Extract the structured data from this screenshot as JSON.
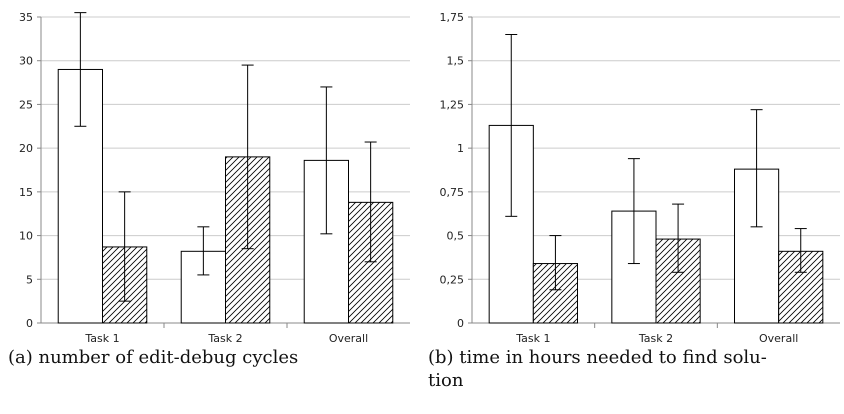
{
  "chart_data": [
    {
      "type": "bar",
      "categories": [
        "Task 1",
        "Task 2",
        "Overall"
      ],
      "series": [
        {
          "values": [
            29.0,
            8.2,
            18.6
          ],
          "error_low": [
            22.5,
            5.5,
            10.2
          ],
          "error_high": [
            35.5,
            11.0,
            27.0
          ],
          "fill": "white"
        },
        {
          "values": [
            8.7,
            19.0,
            13.8
          ],
          "error_low": [
            2.5,
            8.5,
            7.0
          ],
          "error_high": [
            15.0,
            29.5,
            20.7
          ],
          "fill": "hatched"
        }
      ],
      "ylim": [
        0,
        35
      ],
      "yticks": [
        "0",
        "5",
        "10",
        "15",
        "20",
        "25",
        "30",
        "35"
      ],
      "grid": true,
      "caption": "(a) number of edit-debug cycles"
    },
    {
      "type": "bar",
      "categories": [
        "Task 1",
        "Task 2",
        "Overall"
      ],
      "series": [
        {
          "values": [
            1.13,
            0.64,
            0.88
          ],
          "error_low": [
            0.61,
            0.34,
            0.55
          ],
          "error_high": [
            1.65,
            0.94,
            1.22
          ],
          "fill": "white"
        },
        {
          "values": [
            0.34,
            0.48,
            0.41
          ],
          "error_low": [
            0.19,
            0.29,
            0.29
          ],
          "error_high": [
            0.5,
            0.68,
            0.54
          ],
          "fill": "hatched"
        }
      ],
      "ylim": [
        0,
        1.75
      ],
      "yticks": [
        "0",
        "0,25",
        "0,5",
        "0,75",
        "1",
        "1,25",
        "1,5",
        "1,75"
      ],
      "grid": true,
      "caption": "(b) time in hours needed to find solution"
    }
  ],
  "captions": {
    "a": "(a) number of edit-debug cycles",
    "b": "(b) time in hours needed to find solu-\ntion"
  },
  "colors": {
    "axis": "#888888",
    "grid": "#cccccc",
    "bar_stroke": "#000000",
    "bar_fill": "#ffffff"
  }
}
